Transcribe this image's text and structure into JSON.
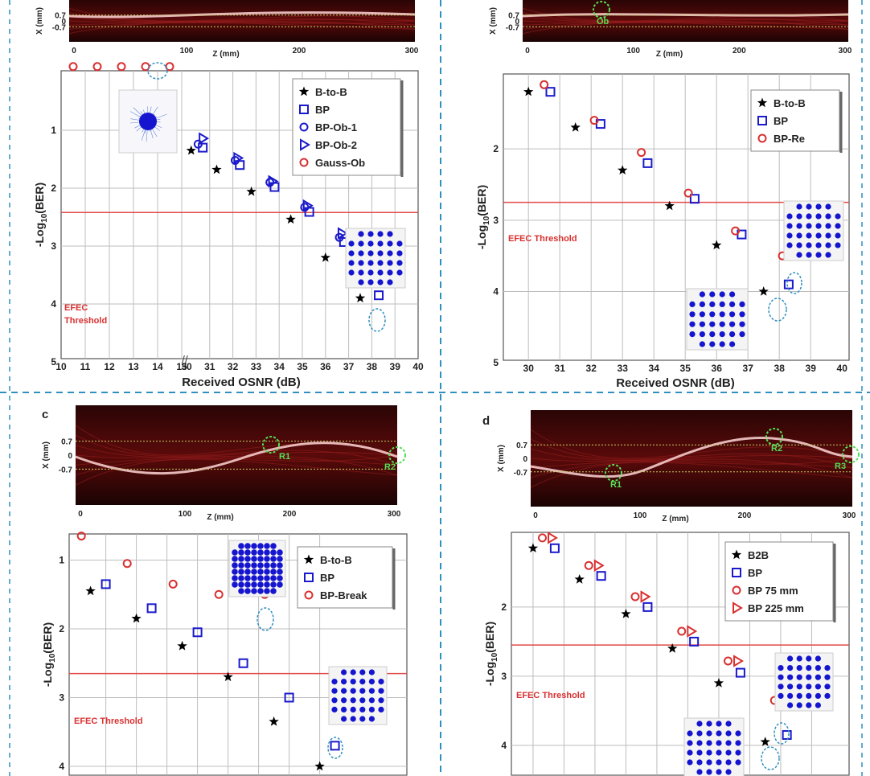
{
  "figure": {
    "threshold_label": "EFEC Threshold",
    "threshold_label_a": [
      "EFEC",
      "Threshold"
    ],
    "zlabel": "Z (mm)",
    "xlabel_heat": "X (mm)",
    "heat_ticks_x": [
      "0",
      "100",
      "200",
      "300"
    ],
    "heat_ticks_y": [
      "0.7",
      "0",
      "-0.7"
    ],
    "colors": {
      "black": "#000000",
      "blue": "#1a1acc",
      "red": "#d93030",
      "threshold": "#e24a4a",
      "guide": "#2f8fbf"
    }
  },
  "chart_data": [
    {
      "id": "a",
      "type": "scatter",
      "panel_letter": "",
      "xlabel": "Received OSNR (dB)",
      "ylabel": "-Log10(BER)",
      "x_ticks_left": [
        "10",
        "11",
        "12",
        "13",
        "14",
        "15"
      ],
      "x_ticks_right": [
        "30",
        "31",
        "32",
        "33",
        "34",
        "35",
        "36",
        "37",
        "38",
        "39",
        "40"
      ],
      "y_ticks": [
        "1",
        "2",
        "3",
        "4",
        "5"
      ],
      "ylim": [
        0,
        5
      ],
      "threshold": 2.42,
      "heatmap_marker": "",
      "series": [
        {
          "name": "B-to-B",
          "marker": "star",
          "color": "#000000",
          "x": [
            30.2,
            31.3,
            32.8,
            34.5,
            36,
            37.5
          ],
          "y": [
            1.35,
            1.68,
            2.06,
            2.54,
            3.2,
            3.9
          ]
        },
        {
          "name": "BP",
          "marker": "square",
          "color": "#1a1acc",
          "x": [
            30.7,
            32.3,
            33.8,
            35.3,
            36.8,
            38.3
          ],
          "y": [
            1.3,
            1.6,
            1.98,
            2.41,
            2.93,
            3.85
          ]
        },
        {
          "name": "BP-Ob-1",
          "marker": "circle",
          "color": "#1a1acc",
          "x": [
            30.5,
            32.1,
            33.6,
            35.1,
            36.6,
            38.1
          ],
          "y": [
            1.24,
            1.52,
            1.9,
            2.33,
            2.85,
            3.6
          ]
        },
        {
          "name": "BP-Ob-2",
          "marker": "triangle",
          "color": "#1a1acc",
          "x": [
            30.7,
            32.2,
            33.7,
            35.2,
            36.7,
            38.2
          ],
          "y": [
            1.14,
            1.48,
            1.88,
            2.3,
            2.78,
            3.45
          ]
        },
        {
          "name": "Gauss-Ob",
          "marker": "circle",
          "color": "#d93030",
          "x": [
            10.5,
            11.5,
            12.5,
            13.5,
            14.5
          ],
          "y": [
            -0.1,
            -0.1,
            -0.1,
            -0.1,
            -0.1
          ]
        }
      ]
    },
    {
      "id": "b",
      "type": "scatter",
      "panel_letter": "",
      "xlabel": "Received OSNR (dB)",
      "ylabel": "-Log10(BER)",
      "x_ticks": [
        "30",
        "31",
        "32",
        "33",
        "34",
        "35",
        "36",
        "37",
        "38",
        "39",
        "40"
      ],
      "y_ticks": [
        "2",
        "3",
        "4",
        "5"
      ],
      "ylim": [
        1,
        5
      ],
      "threshold": 2.75,
      "heatmap_marker": "Ob",
      "series": [
        {
          "name": "B-to-B",
          "marker": "star",
          "color": "#000000",
          "x": [
            30,
            31.5,
            33,
            34.5,
            36,
            37.5
          ],
          "y": [
            1.2,
            1.7,
            2.3,
            2.8,
            3.35,
            4.0
          ]
        },
        {
          "name": "BP",
          "marker": "square",
          "color": "#1a1acc",
          "x": [
            30.7,
            32.3,
            33.8,
            35.3,
            36.8,
            38.3
          ],
          "y": [
            1.2,
            1.65,
            2.2,
            2.7,
            3.2,
            3.9
          ]
        },
        {
          "name": "BP-Re",
          "marker": "circle",
          "color": "#d93030",
          "x": [
            30.5,
            32.1,
            33.6,
            35.1,
            36.6,
            38.1
          ],
          "y": [
            1.1,
            1.6,
            2.05,
            2.62,
            3.15,
            3.5
          ]
        }
      ]
    },
    {
      "id": "c",
      "type": "scatter",
      "panel_letter": "c",
      "xlabel": "",
      "ylabel": "-Log10(BER)",
      "x_ticks": [],
      "y_ticks": [
        "1",
        "2",
        "3",
        "4"
      ],
      "ylim": [
        0.6,
        4.1
      ],
      "threshold": 2.65,
      "heatmap_markers": [
        "R1",
        "R2"
      ],
      "series": [
        {
          "name": "B-to-B",
          "marker": "star",
          "color": "#000000",
          "x": [
            30.5,
            32.0,
            33.5,
            35.0,
            36.5,
            38.0
          ],
          "y": [
            1.45,
            1.85,
            2.25,
            2.7,
            3.35,
            4.0
          ]
        },
        {
          "name": "BP",
          "marker": "square",
          "color": "#1a1acc",
          "x": [
            31.0,
            32.5,
            34.0,
            35.5,
            37.0,
            38.5
          ],
          "y": [
            1.35,
            1.7,
            2.05,
            2.5,
            3.0,
            3.7
          ]
        },
        {
          "name": "BP-Break",
          "marker": "circle",
          "color": "#d93030",
          "x": [
            30.2,
            31.7,
            33.2,
            34.7,
            36.2,
            37.7
          ],
          "y": [
            0.65,
            1.05,
            1.35,
            1.5,
            1.5,
            1.5
          ]
        }
      ]
    },
    {
      "id": "d",
      "type": "scatter",
      "panel_letter": "d",
      "xlabel": "",
      "ylabel": "-Log10(BER)",
      "x_ticks": [],
      "y_ticks": [
        "2",
        "3",
        "4"
      ],
      "ylim": [
        1,
        4.1
      ],
      "threshold": 2.55,
      "heatmap_markers": [
        "R1",
        "R2",
        "R3"
      ],
      "series": [
        {
          "name": "B2B",
          "marker": "star",
          "color": "#000000",
          "x": [
            30,
            31.5,
            33,
            34.5,
            36,
            37.5
          ],
          "y": [
            1.15,
            1.6,
            2.1,
            2.6,
            3.1,
            3.95
          ]
        },
        {
          "name": "BP",
          "marker": "square",
          "color": "#1a1acc",
          "x": [
            30.7,
            32.2,
            33.7,
            35.2,
            36.7,
            38.2
          ],
          "y": [
            1.15,
            1.55,
            2.0,
            2.5,
            2.95,
            3.85
          ]
        },
        {
          "name": "BP 75 mm",
          "marker": "circle",
          "color": "#d93030",
          "x": [
            30.3,
            31.8,
            33.3,
            34.8,
            36.3,
            37.8
          ],
          "y": [
            1.0,
            1.4,
            1.85,
            2.35,
            2.78,
            3.35
          ]
        },
        {
          "name": "BP 225 mm",
          "marker": "triangle",
          "color": "#d93030",
          "x": [
            30.6,
            32.1,
            33.6,
            35.1,
            36.6,
            38.1
          ],
          "y": [
            1.0,
            1.4,
            1.85,
            2.35,
            2.78,
            3.35
          ]
        }
      ]
    }
  ]
}
